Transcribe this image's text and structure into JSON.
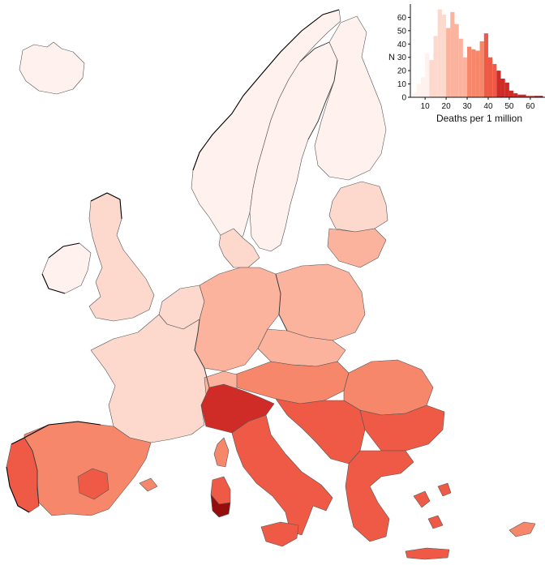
{
  "colors": {
    "scale": [
      "#fef1ee",
      "#fdd8cc",
      "#fbb39d",
      "#f7876b",
      "#ee5a45",
      "#cf2b27",
      "#960d0d"
    ],
    "background": "#ffffff",
    "boundary": "#555555"
  },
  "map": {
    "regions": [
      {
        "name": "iceland",
        "level": 0
      },
      {
        "name": "norway",
        "level": 0
      },
      {
        "name": "sweden",
        "level": 0
      },
      {
        "name": "finland",
        "level": 0
      },
      {
        "name": "estonia-latvia",
        "level": 1
      },
      {
        "name": "lithuania",
        "level": 2
      },
      {
        "name": "denmark",
        "level": 1
      },
      {
        "name": "ireland",
        "level": 0
      },
      {
        "name": "great-britain",
        "level": 1
      },
      {
        "name": "poland",
        "level": 2
      },
      {
        "name": "germany",
        "level": 2
      },
      {
        "name": "netherlands-belgium",
        "level": 1
      },
      {
        "name": "france",
        "level": 1
      },
      {
        "name": "czechia-slovakia",
        "level": 2
      },
      {
        "name": "austria-hungary",
        "level": 3
      },
      {
        "name": "switzerland",
        "level": 2
      },
      {
        "name": "romania",
        "level": 3
      },
      {
        "name": "bulgaria",
        "level": 4
      },
      {
        "name": "balkans",
        "level": 4
      },
      {
        "name": "greece",
        "level": 4
      },
      {
        "name": "italy-north",
        "level": 5
      },
      {
        "name": "italy-south",
        "level": 4
      },
      {
        "name": "sardinia",
        "level": 4
      },
      {
        "name": "sardinia-south",
        "level": 6
      },
      {
        "name": "sicily",
        "level": 4
      },
      {
        "name": "corsica",
        "level": 3
      },
      {
        "name": "spain",
        "level": 3
      },
      {
        "name": "spain-central",
        "level": 4
      },
      {
        "name": "portugal",
        "level": 4
      },
      {
        "name": "crete",
        "level": 4
      },
      {
        "name": "cyprus",
        "level": 3
      },
      {
        "name": "aegean-islands",
        "level": 4
      },
      {
        "name": "balearic-islands",
        "level": 3
      }
    ]
  },
  "chart_data": {
    "type": "bar",
    "xlabel": "Deaths per 1 million",
    "ylabel": "N",
    "xlim": [
      3,
      67
    ],
    "ylim": [
      0,
      70
    ],
    "xticks": [
      10,
      20,
      30,
      40,
      50,
      60
    ],
    "yticks": [
      0,
      10,
      20,
      30,
      40,
      50,
      60
    ],
    "bin_width": 2,
    "bins": [
      {
        "x": 5,
        "count": 3,
        "level": 0
      },
      {
        "x": 7,
        "count": 10,
        "level": 0
      },
      {
        "x": 9,
        "count": 15,
        "level": 0
      },
      {
        "x": 11,
        "count": 33,
        "level": 0
      },
      {
        "x": 13,
        "count": 28,
        "level": 1
      },
      {
        "x": 15,
        "count": 46,
        "level": 1
      },
      {
        "x": 17,
        "count": 66,
        "level": 1
      },
      {
        "x": 19,
        "count": 62,
        "level": 1
      },
      {
        "x": 21,
        "count": 52,
        "level": 2
      },
      {
        "x": 23,
        "count": 64,
        "level": 2
      },
      {
        "x": 25,
        "count": 55,
        "level": 2
      },
      {
        "x": 27,
        "count": 44,
        "level": 2
      },
      {
        "x": 29,
        "count": 30,
        "level": 2
      },
      {
        "x": 31,
        "count": 38,
        "level": 3
      },
      {
        "x": 33,
        "count": 36,
        "level": 3
      },
      {
        "x": 35,
        "count": 35,
        "level": 3
      },
      {
        "x": 37,
        "count": 42,
        "level": 3
      },
      {
        "x": 39,
        "count": 48,
        "level": 4
      },
      {
        "x": 41,
        "count": 30,
        "level": 4
      },
      {
        "x": 43,
        "count": 25,
        "level": 4
      },
      {
        "x": 45,
        "count": 20,
        "level": 5
      },
      {
        "x": 47,
        "count": 14,
        "level": 5
      },
      {
        "x": 49,
        "count": 11,
        "level": 5
      },
      {
        "x": 51,
        "count": 5,
        "level": 5
      },
      {
        "x": 53,
        "count": 3,
        "level": 5
      },
      {
        "x": 55,
        "count": 2,
        "level": 5
      },
      {
        "x": 57,
        "count": 2,
        "level": 5
      },
      {
        "x": 59,
        "count": 1,
        "level": 5
      },
      {
        "x": 61,
        "count": 1,
        "level": 5
      },
      {
        "x": 63,
        "count": 1,
        "level": 6
      },
      {
        "x": 65,
        "count": 1,
        "level": 6
      }
    ]
  }
}
